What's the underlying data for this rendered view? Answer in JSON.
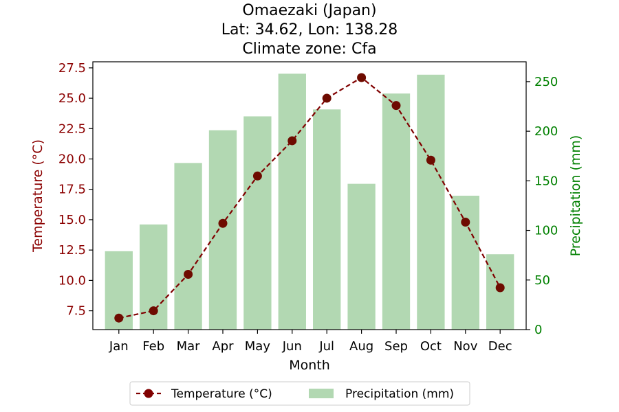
{
  "chart_data": {
    "type": "bar+line",
    "title": {
      "line1": "Omaezaki (Japan)",
      "line2": "Lat: 34.62, Lon: 138.28",
      "line3": "Climate zone: Cfa"
    },
    "xlabel": "Month",
    "ylabel_left": "Temperature (°C)",
    "ylabel_right": "Precipitation (mm)",
    "categories": [
      "Jan",
      "Feb",
      "Mar",
      "Apr",
      "May",
      "Jun",
      "Jul",
      "Aug",
      "Sep",
      "Oct",
      "Nov",
      "Dec"
    ],
    "temperature": {
      "name": "Temperature (°C)",
      "values": [
        6.9,
        7.5,
        10.5,
        14.7,
        18.6,
        21.5,
        25.0,
        26.7,
        24.4,
        19.9,
        14.8,
        9.4
      ],
      "ylim": [
        5.95,
        28.0
      ],
      "ticks": [
        "7.5",
        "10.0",
        "12.5",
        "15.0",
        "17.5",
        "20.0",
        "22.5",
        "25.0",
        "27.5"
      ],
      "color": "#800000"
    },
    "precipitation": {
      "name": "Precipitation (mm)",
      "values": [
        79,
        106,
        168,
        201,
        215,
        258,
        222,
        147,
        238,
        257,
        135,
        76
      ],
      "ylim": [
        0,
        270
      ],
      "ticks": [
        "0",
        "50",
        "100",
        "150",
        "200",
        "250"
      ],
      "color": "#b2d8b2"
    },
    "tick_color_left": "#8b0000",
    "tick_color_right": "#008000",
    "legend_position": "bottom-center"
  }
}
